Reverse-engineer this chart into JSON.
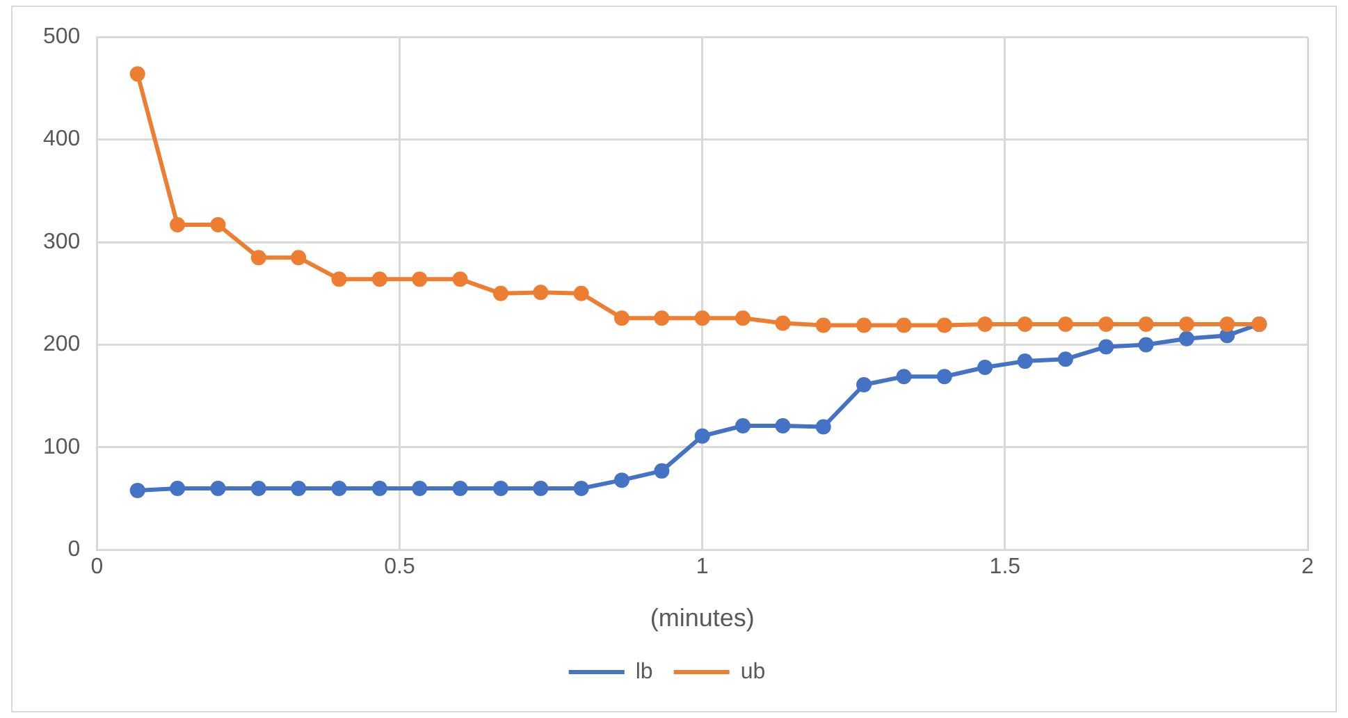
{
  "chart_data": {
    "type": "line",
    "xlabel": "(minutes)",
    "x": [
      0.067,
      0.133,
      0.2,
      0.267,
      0.333,
      0.4,
      0.467,
      0.533,
      0.6,
      0.667,
      0.733,
      0.8,
      0.867,
      0.933,
      1.0,
      1.067,
      1.133,
      1.2,
      1.267,
      1.333,
      1.4,
      1.467,
      1.533,
      1.6,
      1.667,
      1.733,
      1.8,
      1.867,
      1.92
    ],
    "series": [
      {
        "name": "lb",
        "color": "#4472c4",
        "values": [
          58,
          60,
          60,
          60,
          60,
          60,
          60,
          60,
          60,
          60,
          60,
          60,
          68,
          77,
          111,
          121,
          121,
          120,
          161,
          169,
          169,
          178,
          184,
          186,
          198,
          200,
          206,
          209,
          220
        ]
      },
      {
        "name": "ub",
        "color": "#ed7d31",
        "values": [
          464,
          317,
          317,
          285,
          285,
          264,
          264,
          264,
          264,
          250,
          251,
          250,
          226,
          226,
          226,
          226,
          221,
          219,
          219,
          219,
          219,
          220,
          220,
          220,
          220,
          220,
          220,
          220,
          220
        ]
      }
    ],
    "xlim": [
      0,
      2
    ],
    "xticks": [
      0,
      0.5,
      1,
      1.5,
      2
    ],
    "ylim": [
      0,
      500
    ],
    "yticks": [
      0,
      100,
      200,
      300,
      400,
      500
    ],
    "grid": true,
    "legend": "bottom",
    "marker": "circle",
    "line_style": "solid"
  }
}
